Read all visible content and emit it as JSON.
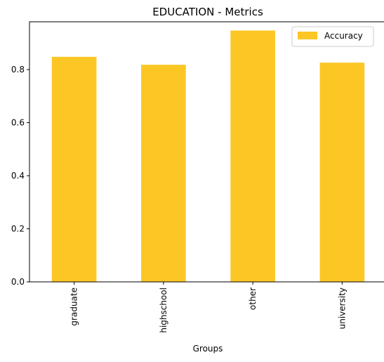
{
  "chart_data": {
    "type": "bar",
    "title": "EDUCATION - Metrics",
    "xlabel": "Groups",
    "ylabel": "",
    "categories": [
      "graduate",
      "highschool",
      "other",
      "university"
    ],
    "series": [
      {
        "name": "Accuracy",
        "values": [
          0.848,
          0.818,
          0.947,
          0.826
        ],
        "color": "#fcc624"
      }
    ],
    "ylim": [
      0,
      0.98
    ],
    "yticks": [
      "0.0",
      "0.2",
      "0.4",
      "0.6",
      "0.8"
    ],
    "grid": false,
    "legend_position": "top-right"
  }
}
